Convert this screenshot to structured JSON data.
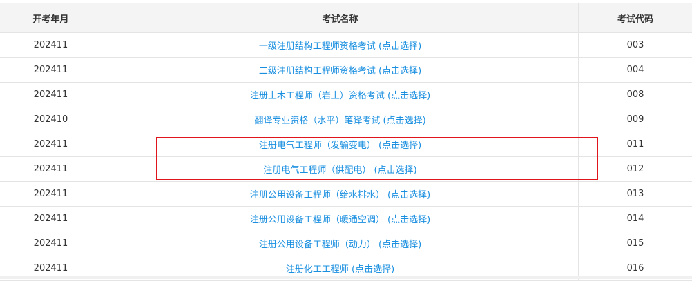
{
  "table": {
    "headers": [
      "开考年月",
      "考试名称",
      "考试代码"
    ],
    "rows": [
      {
        "month": "202411",
        "name": "一级注册结构工程师资格考试 (点击选择)",
        "code": "003"
      },
      {
        "month": "202411",
        "name": "二级注册结构工程师资格考试 (点击选择)",
        "code": "004"
      },
      {
        "month": "202411",
        "name": "注册土木工程师（岩土）资格考试 (点击选择)",
        "code": "008"
      },
      {
        "month": "202410",
        "name": "翻译专业资格（水平）笔译考试 (点击选择)",
        "code": "009"
      },
      {
        "month": "202411",
        "name": "注册电气工程师（发输变电） (点击选择)",
        "code": "011"
      },
      {
        "month": "202411",
        "name": "注册电气工程师（供配电） (点击选择)",
        "code": "012"
      },
      {
        "month": "202411",
        "name": "注册公用设备工程师（给水排水） (点击选择)",
        "code": "013"
      },
      {
        "month": "202411",
        "name": "注册公用设备工程师（暖通空调） (点击选择)",
        "code": "014"
      },
      {
        "month": "202411",
        "name": "注册公用设备工程师（动力） (点击选择)",
        "code": "015"
      },
      {
        "month": "202411",
        "name": "注册化工工程师 (点击选择)",
        "code": "016"
      }
    ]
  },
  "colors": {
    "link": "#1a8fe0",
    "highlight": "#e0141c",
    "header_bg": "#f4f4f4"
  }
}
